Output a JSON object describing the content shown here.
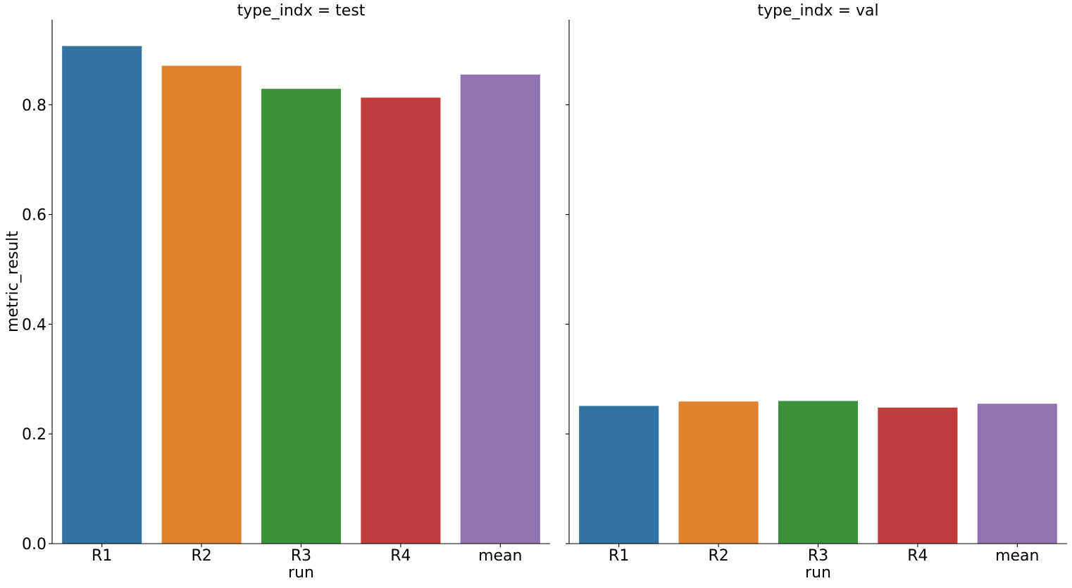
{
  "chart_data": {
    "type": "bar",
    "categories": [
      "R1",
      "R2",
      "R3",
      "R4",
      "mean"
    ],
    "colors": [
      "#3274a1",
      "#e1812c",
      "#3a923a",
      "#c03d3e",
      "#9372b2"
    ],
    "ylabel": "metric_result",
    "xlabel": "run",
    "ylim": [
      0,
      0.955
    ],
    "yticks": [
      0.0,
      0.2,
      0.4,
      0.6,
      0.8
    ],
    "ytick_labels": [
      "0.0",
      "0.2",
      "0.4",
      "0.6",
      "0.8"
    ],
    "grid": false,
    "panels": [
      {
        "title": "type_indx = test",
        "values": [
          0.907,
          0.871,
          0.829,
          0.813,
          0.855
        ]
      },
      {
        "title": "type_indx = val",
        "values": [
          0.251,
          0.259,
          0.26,
          0.248,
          0.255
        ]
      }
    ]
  }
}
